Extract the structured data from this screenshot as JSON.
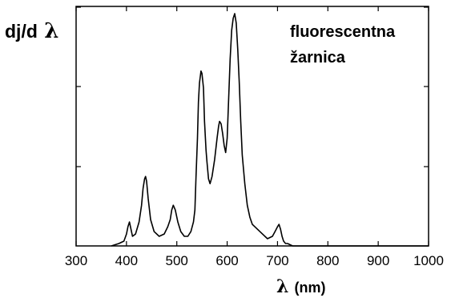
{
  "chart_data": {
    "type": "line",
    "ylabel_prefix": "dj/d",
    "ylabel_symbol": "λ",
    "legend_line1": "fluorescentna",
    "legend_line2": "žarnica",
    "xlabel_symbol": "λ",
    "xlabel_unit": "(nm)",
    "xlim": [
      300,
      1000
    ],
    "xticks": [
      "300",
      "400",
      "500",
      "600",
      "700",
      "800",
      "900",
      "1000"
    ],
    "ylim": [
      0,
      1
    ],
    "y_tick_labels": "none",
    "grid": false,
    "series": [
      {
        "x": [
          370,
          385,
          395,
          400,
          403,
          406,
          409,
          412,
          418,
          425,
          430,
          433,
          436,
          438,
          440,
          443,
          448,
          455,
          465,
          475,
          482,
          487,
          490,
          493,
          497,
          502,
          508,
          515,
          522,
          528,
          533,
          536,
          538,
          541,
          543,
          545,
          548,
          550,
          553,
          555,
          558,
          560,
          563,
          566,
          570,
          575,
          580,
          583,
          585,
          588,
          591,
          594,
          597,
          600,
          603,
          606,
          609,
          612,
          615,
          618,
          621,
          624,
          627,
          630,
          635,
          640,
          645,
          650,
          660,
          670,
          680,
          690,
          695,
          700,
          703,
          706,
          709,
          712,
          716,
          720,
          725,
          730,
          740,
          760,
          800,
          850,
          900,
          950,
          1000
        ],
        "y": [
          0.0,
          0.01,
          0.02,
          0.05,
          0.08,
          0.1,
          0.07,
          0.04,
          0.05,
          0.1,
          0.17,
          0.24,
          0.28,
          0.29,
          0.27,
          0.2,
          0.11,
          0.06,
          0.04,
          0.05,
          0.08,
          0.11,
          0.15,
          0.17,
          0.15,
          0.1,
          0.06,
          0.04,
          0.04,
          0.06,
          0.1,
          0.15,
          0.28,
          0.45,
          0.6,
          0.68,
          0.73,
          0.72,
          0.66,
          0.52,
          0.4,
          0.35,
          0.28,
          0.26,
          0.29,
          0.36,
          0.45,
          0.5,
          0.52,
          0.51,
          0.47,
          0.42,
          0.39,
          0.45,
          0.62,
          0.78,
          0.9,
          0.95,
          0.97,
          0.93,
          0.82,
          0.68,
          0.52,
          0.38,
          0.26,
          0.17,
          0.12,
          0.09,
          0.07,
          0.05,
          0.03,
          0.04,
          0.06,
          0.08,
          0.09,
          0.07,
          0.04,
          0.02,
          0.01,
          0.01,
          0.005,
          0.0,
          0.0,
          0.0,
          0.0,
          0.0,
          0.0,
          0.0,
          0.0
        ]
      }
    ]
  }
}
